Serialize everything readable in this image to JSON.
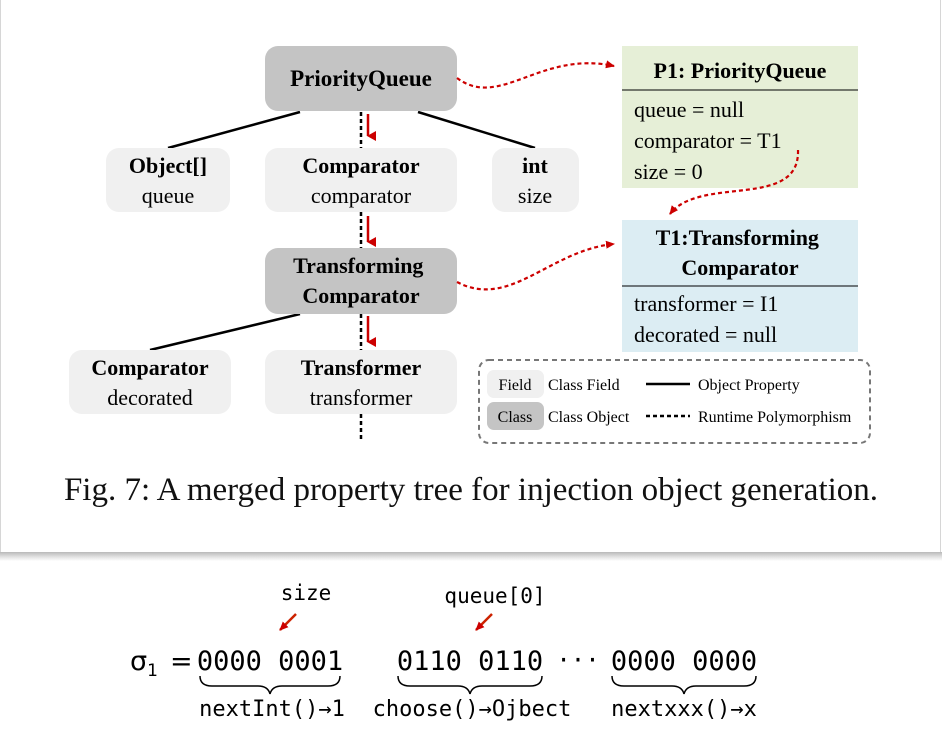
{
  "tree": {
    "nodes": {
      "pq": {
        "type": "",
        "name": "PriorityQueue",
        "kind": "class"
      },
      "obj": {
        "type": "Object[]",
        "name": "queue",
        "kind": "field"
      },
      "cmp": {
        "type": "Comparator",
        "name": "comparator",
        "kind": "field"
      },
      "int": {
        "type": "int",
        "name": "size",
        "kind": "field"
      },
      "tc": {
        "type": "",
        "name": "Transforming Comparator",
        "kind": "class"
      },
      "cmp2": {
        "type": "Comparator",
        "name": "decorated",
        "kind": "field"
      },
      "trans": {
        "type": "Transformer",
        "name": "transformer",
        "kind": "field"
      }
    }
  },
  "objects": {
    "p1": {
      "title": "P1: PriorityQueue",
      "props": [
        "queue = null",
        "comparator = T1",
        "size = 0"
      ],
      "color": "#e6efd7"
    },
    "t1": {
      "title": "T1:Transforming Comparator",
      "props": [
        "transformer = I1",
        "decorated = null"
      ],
      "color": "#dcedf3"
    }
  },
  "legend": {
    "field_tag": "Field",
    "field_label": "Class Field",
    "class_tag": "Class",
    "class_label": "Class Object",
    "solid_label": "Object Property",
    "dashed_label": "Runtime Polymorphism"
  },
  "caption": "Fig. 7: A merged property tree for injection object generation.",
  "sequence": {
    "sigma": "σ",
    "sub": "1",
    "equals": "=",
    "groups": [
      "0000 0001",
      "0110 0110",
      "0000 0000"
    ],
    "ellipsis": "···",
    "annotations": [
      "size",
      "queue[0]"
    ],
    "calls": [
      "nextInt()→1",
      "choose()→Ojbect",
      "nextxxx()→x"
    ]
  },
  "colors": {
    "class_fill": "#c4c4c4",
    "field_fill": "#f0f0f0",
    "arrow_red": "#cc0000"
  }
}
